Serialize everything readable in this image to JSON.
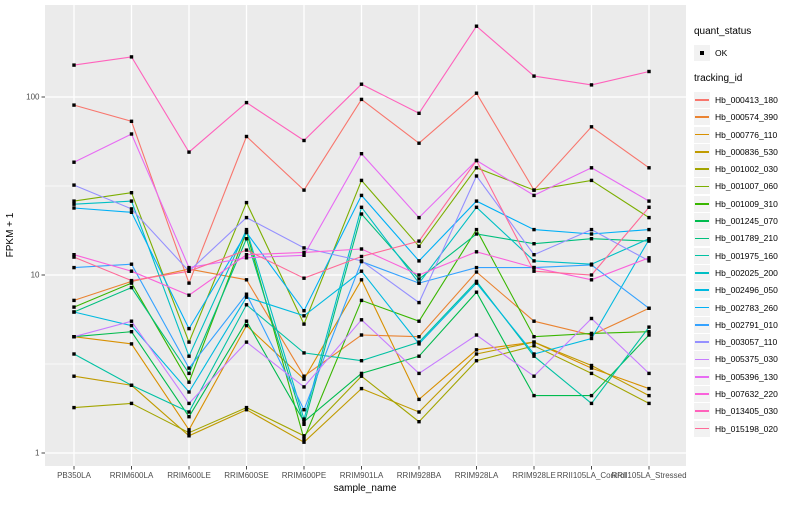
{
  "chart_data": {
    "type": "line",
    "title": "",
    "xlabel": "sample_name",
    "ylabel": "FPKM + 1",
    "y_scale": "log10",
    "y_ticks": [
      1,
      10,
      100
    ],
    "y_tick_labels": [
      "1",
      "10",
      "100"
    ],
    "y_minor_gridlines": [
      3.1623,
      31.6228
    ],
    "ylim": [
      0.85,
      330
    ],
    "grid": true,
    "panel_bg": "#EBEBEB",
    "grid_color": "#FFFFFF",
    "point_color": "#000000",
    "point_shape": "square",
    "legend_position": "right",
    "legend": {
      "quant_status_title": "quant_status",
      "quant_status_items": [
        {
          "label": "OK",
          "marker": "point"
        }
      ],
      "tracking_id_title": "tracking_id",
      "key_bg": "#F2F2F2"
    },
    "x_categories": [
      "PB350LA",
      "RRIM600LA",
      "RRIM600LE",
      "RRIM600SE",
      "RRIM600PE",
      "RRIM901LA",
      "RRIM928BA",
      "RRIM928LA",
      "RRIM928LE",
      "RRII105LA_Control",
      "RRII105LA_Stressed"
    ],
    "series": [
      {
        "name": "Hb_000413_180",
        "color": "#F8766D",
        "values": [
          90,
          73,
          9.0,
          60,
          30,
          97,
          55,
          105,
          30,
          68,
          40
        ]
      },
      {
        "name": "Hb_000574_390",
        "color": "#EA8331",
        "values": [
          7.2,
          9.2,
          10.8,
          9.4,
          2.7,
          4.6,
          4.5,
          10.4,
          5.5,
          4.6,
          6.5
        ]
      },
      {
        "name": "Hb_000776_110",
        "color": "#D89000",
        "values": [
          4.5,
          4.1,
          1.35,
          5.2,
          2.6,
          9.4,
          2.0,
          3.8,
          4.2,
          3.0,
          2.3
        ]
      },
      {
        "name": "Hb_000836_530",
        "color": "#C09B00",
        "values": [
          2.7,
          2.4,
          1.25,
          1.75,
          1.15,
          2.3,
          1.7,
          3.6,
          4.2,
          3.1,
          2.1
        ]
      },
      {
        "name": "Hb_001002_030",
        "color": "#A3A500",
        "values": [
          1.8,
          1.9,
          1.3,
          1.8,
          1.25,
          2.7,
          1.5,
          3.3,
          4.0,
          2.8,
          1.9
        ]
      },
      {
        "name": "Hb_001007_060",
        "color": "#7CAE00",
        "values": [
          26,
          29,
          4.2,
          25.5,
          5.3,
          34,
          14.5,
          40,
          30,
          34,
          21
        ]
      },
      {
        "name": "Hb_001009_310",
        "color": "#39B600",
        "values": [
          6.6,
          9.0,
          2.5,
          17.5,
          1.2,
          7.2,
          5.5,
          18,
          4.5,
          4.7,
          4.8
        ]
      },
      {
        "name": "Hb_001245_070",
        "color": "#00BB4E",
        "values": [
          4.5,
          4.8,
          1.6,
          5.5,
          1.5,
          2.8,
          3.5,
          8.0,
          2.1,
          2.1,
          4.6
        ]
      },
      {
        "name": "Hb_001789_210",
        "color": "#00BF7D",
        "values": [
          6.2,
          8.5,
          2.8,
          16,
          1.45,
          22,
          9.5,
          17,
          15,
          16,
          15.5
        ]
      },
      {
        "name": "Hb_001975_160",
        "color": "#00C1A3",
        "values": [
          3.6,
          2.4,
          1.7,
          6.8,
          3.65,
          3.3,
          4.2,
          9.2,
          3.5,
          1.9,
          5.1
        ]
      },
      {
        "name": "Hb_002025_200",
        "color": "#00BFC4",
        "values": [
          25,
          26,
          3.5,
          18,
          1.55,
          24,
          9.0,
          24,
          12,
          11.5,
          16
        ]
      },
      {
        "name": "Hb_002496_050",
        "color": "#00BAE0",
        "values": [
          6.2,
          5.2,
          2.2,
          7.5,
          5.9,
          10.5,
          4.1,
          9.0,
          3.6,
          4.4,
          15.8
        ]
      },
      {
        "name": "Hb_002783_260",
        "color": "#00B0F6",
        "values": [
          23.8,
          22.5,
          5.0,
          17.3,
          6.3,
          28,
          12,
          26,
          18,
          17,
          18
        ]
      },
      {
        "name": "Hb_002791_010",
        "color": "#35A2FF",
        "values": [
          11,
          11.5,
          3.0,
          7.8,
          1.75,
          11.9,
          9.0,
          11,
          11,
          11.4,
          6.5
        ]
      },
      {
        "name": "Hb_003057_110",
        "color": "#9590FF",
        "values": [
          32,
          23.5,
          10.5,
          21,
          14.2,
          12,
          7.0,
          36,
          13,
          18,
          12
        ]
      },
      {
        "name": "Hb_005375_030",
        "color": "#C77CFF",
        "values": [
          4.5,
          5.5,
          1.9,
          4.2,
          2.35,
          5.6,
          2.8,
          4.6,
          2.7,
          5.7,
          2.8
        ]
      },
      {
        "name": "Hb_005396_130",
        "color": "#E76BF3",
        "values": [
          43,
          62,
          11,
          12.5,
          12.9,
          48,
          21,
          44,
          28,
          40,
          26
        ]
      },
      {
        "name": "Hb_007632_220",
        "color": "#FA62DB",
        "values": [
          13,
          10.5,
          7.7,
          13,
          13.4,
          14,
          10,
          13.5,
          11,
          9.4,
          12.5
        ]
      },
      {
        "name": "Hb_013405_030",
        "color": "#FF62BC",
        "values": [
          151,
          168,
          49,
          93,
          57,
          118,
          81,
          250,
          131,
          117,
          139
        ]
      },
      {
        "name": "Hb_015198_020",
        "color": "#FF6A98",
        "values": [
          12.6,
          9.3,
          10.5,
          13.8,
          9.6,
          12.7,
          15.5,
          44,
          10.5,
          10,
          24
        ]
      }
    ]
  }
}
